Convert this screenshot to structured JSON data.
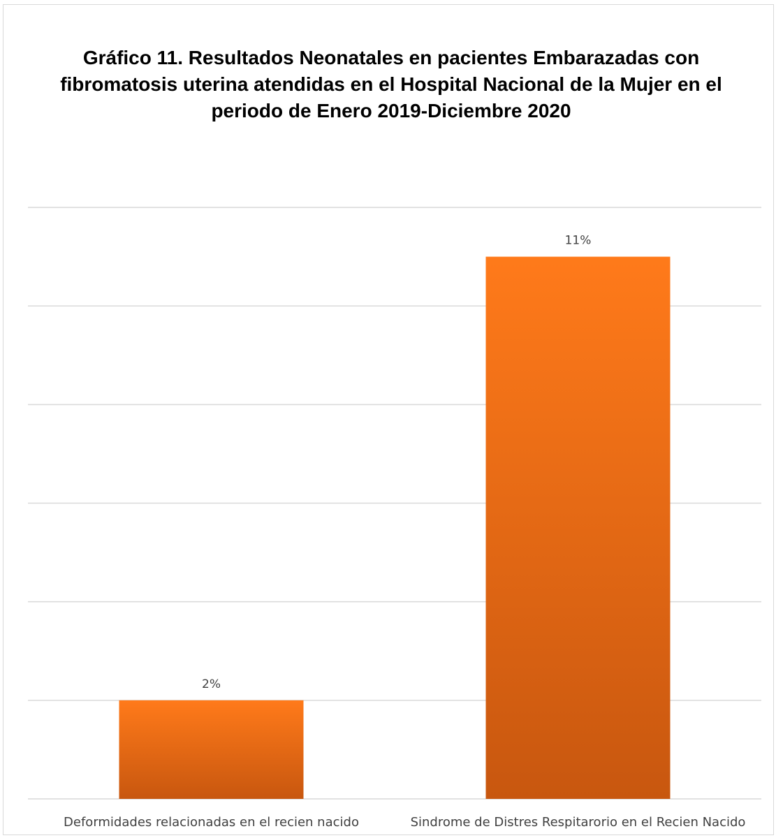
{
  "chart_data": {
    "type": "bar",
    "title": "Gráfico 11. Resultados Neonatales en pacientes Embarazadas con fibromatosis uterina atendidas en el Hospital Nacional de la Mujer en el periodo de Enero 2019-Diciembre 2020",
    "categories": [
      "Deformidades relacionadas en el recien nacido",
      "Sindrome de Distres Respitarorio en el Recien Nacido"
    ],
    "values": [
      2,
      11
    ],
    "value_labels": [
      "2%",
      "11%"
    ],
    "unit": "%",
    "ylim": [
      0,
      12
    ],
    "grid": true,
    "legend": "none",
    "colors": {
      "bar_top": "#ff7a1a",
      "bar_bottom": "#c8570f",
      "grid": "#d9d9d9",
      "text": "#404040"
    }
  }
}
